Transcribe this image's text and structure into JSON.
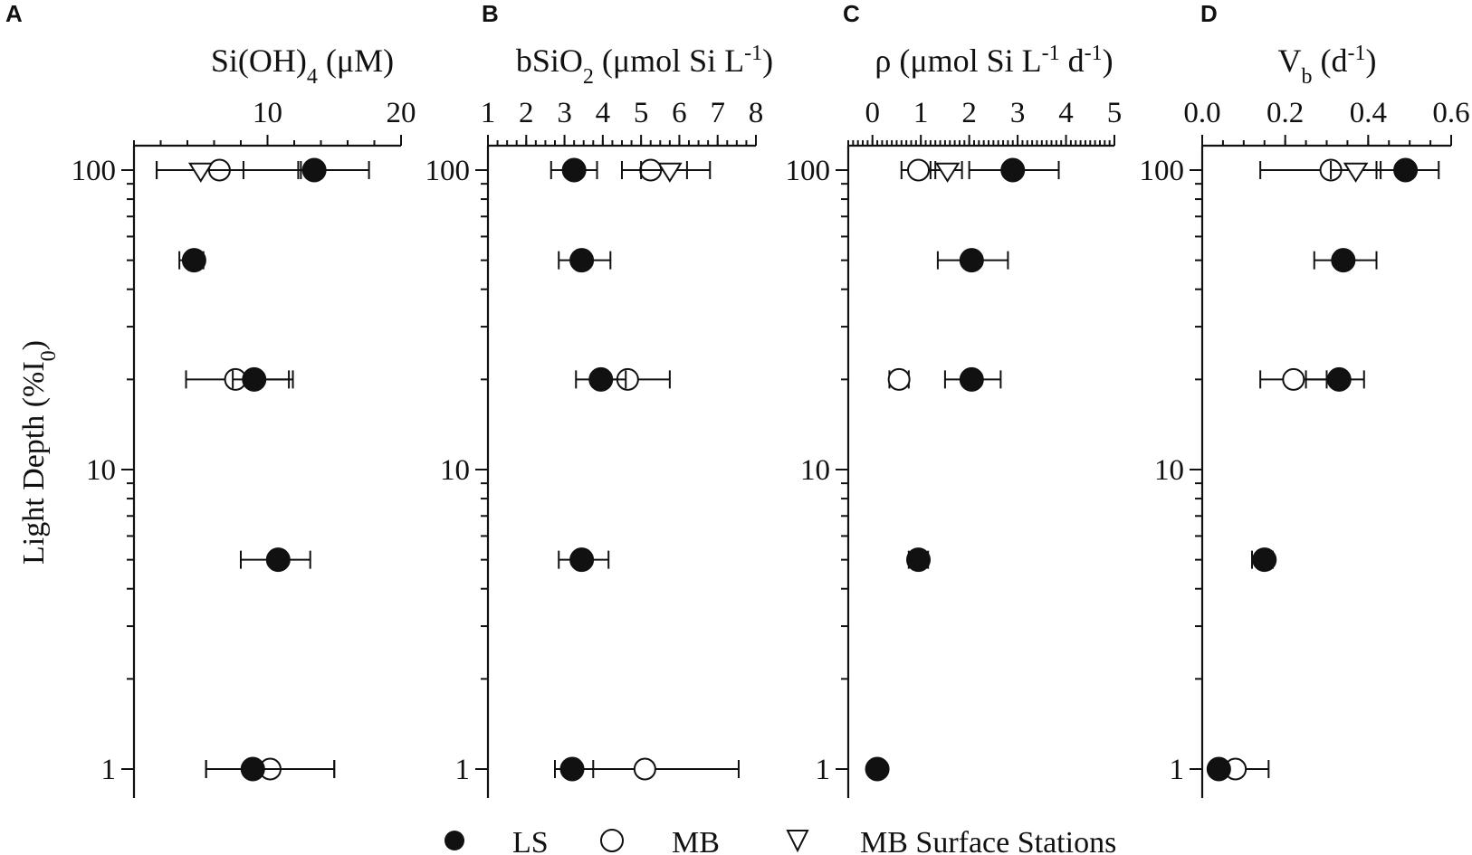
{
  "ylabel": "Light Depth (%I0)",
  "ylabel_main": "Light Depth (%I",
  "ylabel_sub": "0",
  "ylabel_close": ")",
  "ytick_labels": [
    "100",
    "10",
    "1"
  ],
  "legend": [
    {
      "key": "LS",
      "label": "LS",
      "marker": "filled-circle"
    },
    {
      "key": "MB",
      "label": "MB",
      "marker": "open-circle"
    },
    {
      "key": "MBS",
      "label": "MB Surface Stations",
      "marker": "open-triangle-down"
    }
  ],
  "chart_data": [
    {
      "panel": "A",
      "type": "scatter",
      "title": "Si(OH)4 (μM)",
      "title_parts": {
        "a": "Si(OH)",
        "sub": "4",
        "b": " (μM)"
      },
      "xlim": [
        0,
        20
      ],
      "xticks_labeled": [
        10,
        20
      ],
      "xtick_labels": [
        "10",
        "20"
      ],
      "ylim": [
        0.8,
        120
      ],
      "yscale": "log",
      "yticks": [
        1,
        10,
        100
      ],
      "series": [
        {
          "key": "LS",
          "points": [
            {
              "x": 13.5,
              "y": 100,
              "err": [
                12.3,
                17.6
              ]
            },
            {
              "x": 4.5,
              "y": 50,
              "err": [
                3.4,
                5.2
              ]
            },
            {
              "x": 9.0,
              "y": 20,
              "err": [
                7.4,
                11.9
              ]
            },
            {
              "x": 10.8,
              "y": 5,
              "err": [
                8.0,
                13.2
              ]
            },
            {
              "x": 8.9,
              "y": 1,
              "err": [
                5.4,
                15.0
              ]
            }
          ]
        },
        {
          "key": "MB",
          "points": [
            {
              "x": 6.4,
              "y": 100,
              "err": [
                1.7,
                12.5
              ]
            },
            {
              "x": 7.6,
              "y": 20,
              "err": [
                3.9,
                11.6
              ]
            },
            {
              "x": 10.2,
              "y": 1,
              "err": [
                5.4,
                15.0
              ]
            }
          ]
        },
        {
          "key": "MBS",
          "points": [
            {
              "x": 5.0,
              "y": 100,
              "err": [
                1.7,
                8.2
              ]
            }
          ]
        }
      ]
    },
    {
      "panel": "B",
      "type": "scatter",
      "title": "bSiO2 (μmol Si L-1)",
      "title_parts": {
        "a": "bSiO",
        "sub": "2",
        "b": " (μmol Si L",
        "sup": "-1",
        "c": ")"
      },
      "xlim": [
        1,
        8
      ],
      "xticks_labeled": [
        1,
        2,
        3,
        4,
        5,
        6,
        7,
        8
      ],
      "xtick_labels": [
        "1",
        "2",
        "3",
        "4",
        "5",
        "6",
        "7",
        "8"
      ],
      "ylim": [
        0.8,
        120
      ],
      "yscale": "log",
      "yticks": [
        1,
        10,
        100
      ],
      "series": [
        {
          "key": "LS",
          "points": [
            {
              "x": 3.25,
              "y": 100,
              "err": [
                2.65,
                3.85
              ]
            },
            {
              "x": 3.45,
              "y": 50,
              "err": [
                2.85,
                4.2
              ]
            },
            {
              "x": 3.95,
              "y": 20,
              "err": [
                3.3,
                4.6
              ]
            },
            {
              "x": 3.45,
              "y": 5,
              "err": [
                2.85,
                4.15
              ]
            },
            {
              "x": 3.2,
              "y": 1,
              "err": [
                2.75,
                3.75
              ]
            }
          ]
        },
        {
          "key": "MB",
          "points": [
            {
              "x": 5.25,
              "y": 100,
              "err": [
                4.5,
                6.2
              ]
            },
            {
              "x": 4.65,
              "y": 20,
              "err": [
                3.8,
                5.75
              ]
            },
            {
              "x": 5.1,
              "y": 1,
              "err": [
                2.75,
                7.55
              ]
            }
          ]
        },
        {
          "key": "MBS",
          "points": [
            {
              "x": 5.75,
              "y": 100,
              "err": [
                5.0,
                6.8
              ]
            }
          ]
        }
      ]
    },
    {
      "panel": "C",
      "type": "scatter",
      "title": "ρ (μmol Si L-1 d-1)",
      "title_parts": {
        "a": "ρ (μmol Si L",
        "sup": "-1",
        "b": " d",
        "sup2": "-1",
        "c": ")"
      },
      "xlim": [
        -0.5,
        5
      ],
      "xticks_labeled": [
        0,
        1,
        2,
        3,
        4,
        5
      ],
      "xtick_labels": [
        "0",
        "1",
        "2",
        "3",
        "4",
        "5"
      ],
      "ylim": [
        0.8,
        120
      ],
      "yscale": "log",
      "yticks": [
        1,
        10,
        100
      ],
      "series": [
        {
          "key": "LS",
          "points": [
            {
              "x": 2.9,
              "y": 100,
              "err": [
                2.0,
                3.85
              ]
            },
            {
              "x": 2.05,
              "y": 50,
              "err": [
                1.35,
                2.8
              ]
            },
            {
              "x": 2.05,
              "y": 20,
              "err": [
                1.5,
                2.65
              ]
            },
            {
              "x": 0.95,
              "y": 5,
              "err": [
                0.75,
                1.15
              ]
            },
            {
              "x": 0.1,
              "y": 1,
              "err": [
                0.0,
                0.2
              ]
            }
          ]
        },
        {
          "key": "MB",
          "points": [
            {
              "x": 0.95,
              "y": 100,
              "err": [
                0.6,
                1.3
              ]
            },
            {
              "x": 0.55,
              "y": 20,
              "err": [
                0.35,
                0.75
              ]
            }
          ]
        },
        {
          "key": "MBS",
          "points": [
            {
              "x": 1.55,
              "y": 100,
              "err": [
                1.2,
                1.85
              ]
            }
          ]
        }
      ]
    },
    {
      "panel": "D",
      "type": "scatter",
      "title": "Vb (d-1)",
      "title_parts": {
        "a": "V",
        "sub": "b",
        "b": " (d",
        "sup": "-1",
        "c": ")"
      },
      "xlim": [
        0,
        0.6
      ],
      "xticks_labeled": [
        0.0,
        0.2,
        0.4,
        0.6
      ],
      "xtick_labels": [
        "0.0",
        "0.2",
        "0.4",
        "0.6"
      ],
      "ylim": [
        0.8,
        120
      ],
      "yscale": "log",
      "yticks": [
        1,
        10,
        100
      ],
      "series": [
        {
          "key": "LS",
          "points": [
            {
              "x": 0.49,
              "y": 100,
              "err": [
                0.42,
                0.57
              ]
            },
            {
              "x": 0.34,
              "y": 50,
              "err": [
                0.27,
                0.42
              ]
            },
            {
              "x": 0.33,
              "y": 20,
              "err": [
                0.25,
                0.39
              ]
            },
            {
              "x": 0.15,
              "y": 5,
              "err": [
                0.12,
                0.17
              ]
            },
            {
              "x": 0.04,
              "y": 1,
              "err": [
                0.03,
                0.05
              ]
            }
          ]
        },
        {
          "key": "MB",
          "points": [
            {
              "x": 0.31,
              "y": 100,
              "err": [
                0.14,
                0.48
              ]
            },
            {
              "x": 0.22,
              "y": 20,
              "err": [
                0.14,
                0.3
              ]
            },
            {
              "x": 0.08,
              "y": 1,
              "err": [
                0.03,
                0.16
              ]
            }
          ]
        },
        {
          "key": "MBS",
          "points": [
            {
              "x": 0.37,
              "y": 100,
              "err": [
                0.31,
                0.43
              ]
            }
          ]
        }
      ]
    }
  ]
}
